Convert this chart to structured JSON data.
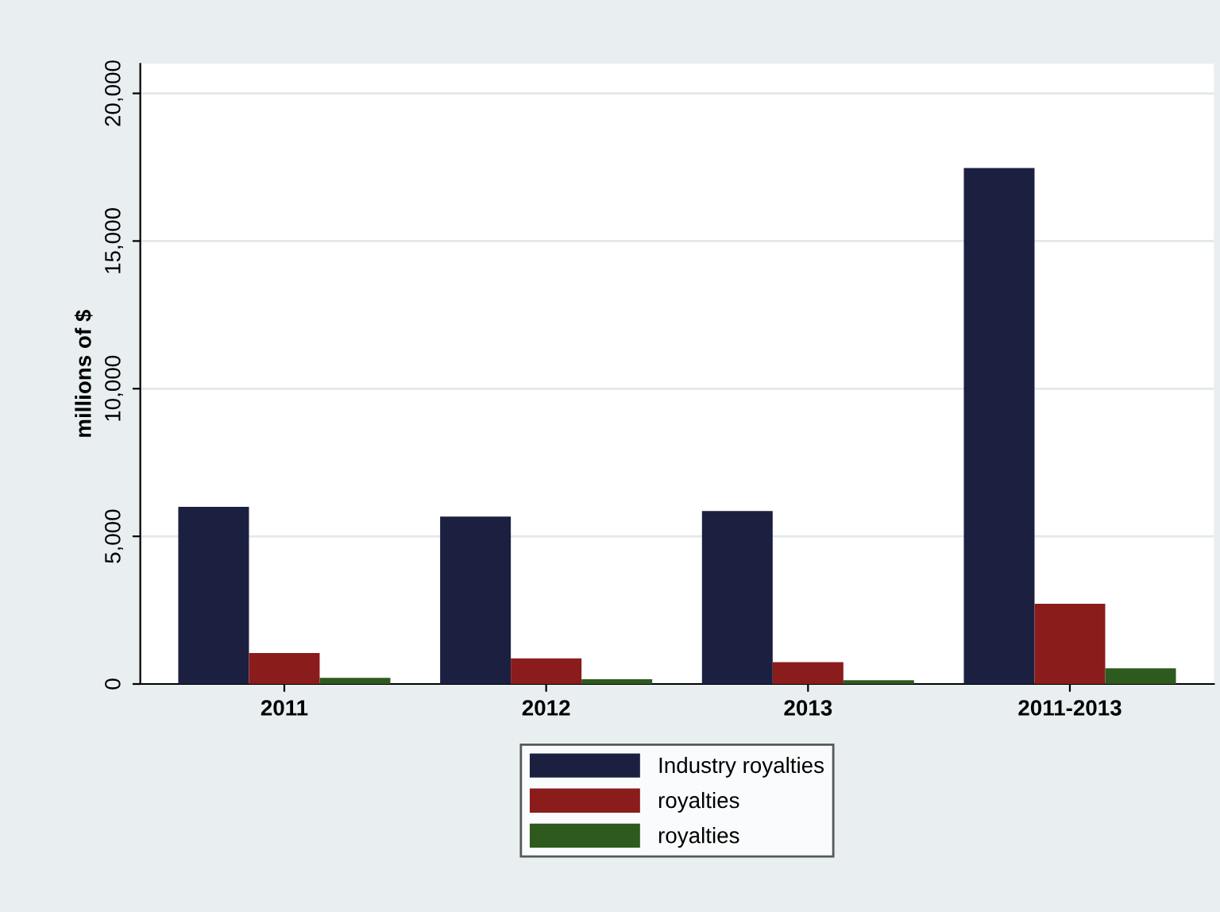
{
  "chart_data": {
    "type": "bar",
    "ylabel": "millions of $",
    "categories": [
      "2011",
      "2012",
      "2013",
      "2011-2013"
    ],
    "series": [
      {
        "name": "Industry royalties",
        "color": "#1b2040",
        "values": [
          6000,
          5670,
          5860,
          17470
        ]
      },
      {
        "name": "royalties",
        "color": "#8a1c1c",
        "values": [
          1050,
          870,
          740,
          2720
        ]
      },
      {
        "name": "royalties",
        "color": "#2e5a1e",
        "values": [
          210,
          160,
          130,
          530
        ]
      }
    ],
    "ylim": [
      0,
      21000
    ],
    "yticks": [
      {
        "value": 0,
        "label": "0"
      },
      {
        "value": 5000,
        "label": "5,000"
      },
      {
        "value": 10000,
        "label": "10,000"
      },
      {
        "value": 15000,
        "label": "15,000"
      },
      {
        "value": 20000,
        "label": "20,000"
      }
    ],
    "grid": "y",
    "legend": "bottom"
  }
}
